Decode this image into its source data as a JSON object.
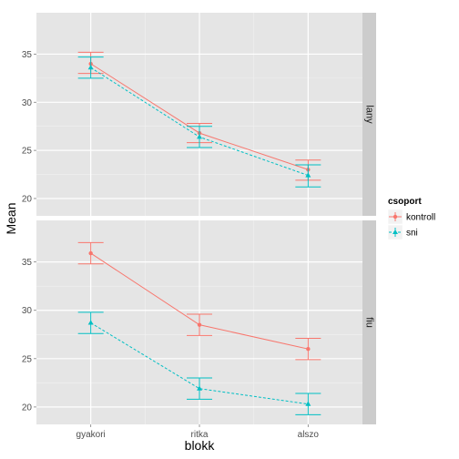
{
  "chart_data": {
    "type": "line",
    "xlabel": "blokk",
    "ylabel": "Mean",
    "categories": [
      "gyakori",
      "ritka",
      "alszo"
    ],
    "facet_labels": [
      "lany",
      "fiu"
    ],
    "legend": {
      "title": "csoport",
      "placement": "right"
    },
    "colors": {
      "kontroll": "#F8766D",
      "sni": "#00BFC4"
    },
    "panels": [
      {
        "facet": "lany",
        "ylim": [
          18.2,
          39.3
        ],
        "yticks": [
          20,
          25,
          30,
          35
        ],
        "series": [
          {
            "name": "kontroll",
            "values": [
              34.0,
              26.8,
              23.0
            ],
            "lower": [
              33.0,
              25.8,
              21.9
            ],
            "upper": [
              35.2,
              27.8,
              24.0
            ]
          },
          {
            "name": "sni",
            "values": [
              33.6,
              26.4,
              22.4
            ],
            "lower": [
              32.5,
              25.3,
              21.2
            ],
            "upper": [
              34.7,
              27.5,
              23.5
            ]
          }
        ]
      },
      {
        "facet": "fiu",
        "ylim": [
          18.2,
          39.3
        ],
        "yticks": [
          20,
          25,
          30,
          35
        ],
        "series": [
          {
            "name": "kontroll",
            "values": [
              35.9,
              28.5,
              26.0
            ],
            "lower": [
              34.8,
              27.4,
              24.9
            ],
            "upper": [
              37.0,
              29.6,
              27.1
            ]
          },
          {
            "name": "sni",
            "values": [
              28.7,
              21.9,
              20.3
            ],
            "lower": [
              27.6,
              20.8,
              19.2
            ],
            "upper": [
              29.8,
              23.0,
              21.4
            ]
          }
        ]
      }
    ]
  }
}
